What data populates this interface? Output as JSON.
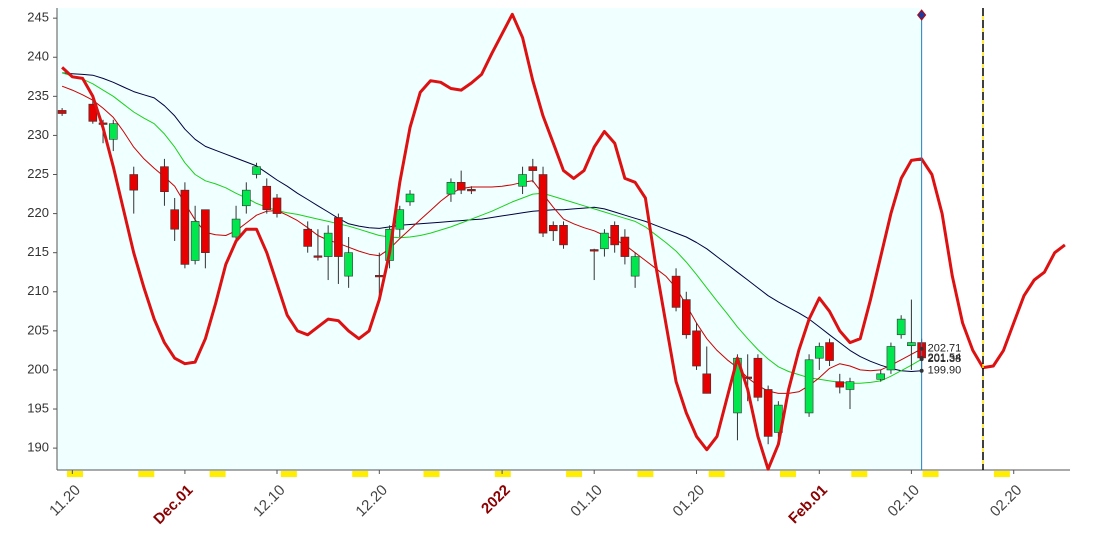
{
  "chart_data": {
    "type": "candlestick",
    "categories": [
      null,
      "11.20",
      null,
      null,
      null,
      null,
      null,
      null,
      null,
      null,
      null,
      null,
      "Dec.01",
      null,
      null,
      null,
      null,
      null,
      null,
      null,
      null,
      "12.10",
      null,
      null,
      null,
      null,
      null,
      null,
      null,
      null,
      null,
      "12.20",
      null,
      null,
      null,
      null,
      null,
      null,
      null,
      null,
      null,
      null,
      null,
      "2022",
      null,
      null,
      null,
      null,
      null,
      null,
      null,
      null,
      "01.10",
      null,
      null,
      null,
      null,
      null,
      null,
      null,
      null,
      null,
      "01.20",
      null,
      null,
      null,
      null,
      null,
      null,
      null,
      null,
      null,
      null,
      null,
      "Feb.01",
      null,
      null,
      null,
      null,
      null,
      null,
      null,
      null,
      "02.10",
      null,
      null,
      null,
      null,
      null,
      null,
      null,
      null,
      null,
      "02.20",
      null,
      null,
      null,
      null,
      null
    ],
    "ohlc": [
      [
        233.2,
        233.5,
        232.5,
        232.8
      ],
      null,
      null,
      [
        234,
        234.5,
        231.5,
        231.8
      ],
      [
        231.6,
        232,
        229,
        231.4
      ],
      [
        229.5,
        232,
        228,
        231.5
      ],
      null,
      [
        225,
        226,
        220,
        223
      ],
      null,
      null,
      [
        226,
        227,
        221,
        222.8
      ],
      [
        220.5,
        222,
        216.5,
        218
      ],
      [
        223,
        224,
        213,
        213.5
      ],
      [
        214,
        221,
        213.5,
        219
      ],
      [
        220.5,
        220.5,
        213,
        215
      ],
      null,
      null,
      [
        217,
        221,
        216.5,
        219.3
      ],
      [
        221,
        224,
        220,
        223
      ],
      [
        225,
        226.5,
        224.5,
        226
      ],
      [
        223.5,
        224.5,
        220,
        220.5
      ],
      [
        222,
        222.5,
        219.5,
        220
      ],
      null,
      null,
      [
        218,
        219,
        215,
        215.8
      ],
      [
        214.6,
        218,
        214,
        214.4
      ],
      [
        214.5,
        218.5,
        211.5,
        217.5
      ],
      [
        219.5,
        220,
        211,
        214.5
      ],
      [
        212,
        217,
        210.5,
        215
      ],
      null,
      null,
      [
        212.1,
        215,
        209,
        211.9
      ],
      [
        214,
        218.5,
        213,
        218
      ],
      [
        218,
        221,
        217,
        220.5
      ],
      [
        221.5,
        223,
        221,
        222.5
      ],
      null,
      null,
      null,
      [
        222.5,
        224.5,
        221.5,
        224
      ],
      [
        224,
        225.5,
        222.5,
        223
      ],
      [
        223.1,
        223.5,
        222.5,
        222.9
      ],
      null,
      null,
      null,
      null,
      [
        223.5,
        226,
        222.5,
        225
      ],
      [
        226,
        227,
        224,
        225.5
      ],
      [
        225,
        226,
        217,
        217.5
      ],
      [
        218.5,
        219,
        216.5,
        217.8
      ],
      [
        218.5,
        219,
        215.5,
        216
      ],
      null,
      null,
      [
        215.4,
        215.5,
        211.5,
        215.2
      ],
      [
        215.5,
        218,
        214.5,
        217.5
      ],
      [
        218.5,
        219,
        215,
        216
      ],
      [
        217,
        218,
        213.5,
        214.5
      ],
      [
        212,
        215,
        210.5,
        214.5
      ],
      null,
      null,
      null,
      [
        212,
        213,
        207.5,
        208
      ],
      [
        209,
        210,
        204,
        204.5
      ],
      [
        205,
        206,
        200,
        200.5
      ],
      [
        199.5,
        203,
        197,
        197
      ],
      null,
      null,
      [
        194.5,
        202,
        191,
        201.5
      ],
      [
        199.1,
        202,
        196,
        198.9
      ],
      [
        201.5,
        202,
        196,
        196.5
      ],
      [
        197.5,
        198,
        190.5,
        191.5
      ],
      [
        192,
        196,
        190.5,
        195.5
      ],
      null,
      null,
      [
        194.5,
        202,
        194,
        201.3
      ],
      [
        201.5,
        203.5,
        200,
        203
      ],
      [
        203.5,
        204,
        200.5,
        201.2
      ],
      [
        198.5,
        199.5,
        197,
        197.8
      ],
      [
        197.5,
        199,
        195,
        198.5
      ],
      null,
      null,
      [
        198.8,
        200,
        198.5,
        199.5
      ],
      [
        200,
        203.5,
        199.5,
        203
      ],
      [
        204.5,
        207,
        204,
        206.5
      ],
      [
        203.1,
        209,
        200,
        203.5
      ],
      [
        203.5,
        204,
        199.9,
        201.54
      ],
      null,
      null,
      null,
      null,
      null,
      null,
      null,
      null,
      null,
      null,
      null,
      null,
      null,
      null
    ],
    "up_color": "#00e64d",
    "down_color": "#e60000",
    "series": [
      {
        "color": "#000040",
        "line_width": 1,
        "values": [
          238,
          237.9,
          237.8,
          237.7,
          237.3,
          236.8,
          236.2,
          235.6,
          235.2,
          234.8,
          233.8,
          232.5,
          230.8,
          229.5,
          228.6,
          228.1,
          227.6,
          227.1,
          226.6,
          226.1,
          225.2,
          224.3,
          223.5,
          222.6,
          221.8,
          221,
          220.2,
          219.4,
          218.7,
          218.4,
          218.2,
          218.1,
          218.3,
          218.5,
          218.6,
          218.7,
          218.8,
          218.9,
          219,
          219.1,
          219.2,
          219.3,
          219.5,
          219.7,
          219.9,
          220.1,
          220.3,
          220.4,
          220.5,
          220.5,
          220.6,
          220.7,
          220.8,
          220.6,
          220.2,
          219.8,
          219.4,
          219,
          218.5,
          218,
          217.5,
          217,
          216.3,
          215.5,
          214.5,
          213.5,
          212.5,
          211.5,
          210.5,
          209.5,
          208.7,
          208,
          207.3,
          206.5,
          205.5,
          204.5,
          203.5,
          202.5,
          201.7,
          201.1,
          200.6,
          200.2,
          199.9,
          199.8,
          199.9,
          null,
          null,
          null,
          null,
          null,
          null,
          null,
          null,
          null,
          null,
          null,
          null,
          null,
          null
        ]
      },
      {
        "color": "#19d219",
        "line_width": 1,
        "values": [
          238,
          237.6,
          237.2,
          236.6,
          235.8,
          235,
          234,
          233,
          232.2,
          231.5,
          230.2,
          228.5,
          226.5,
          225,
          224.2,
          223.8,
          223.3,
          222.6,
          222,
          221.3,
          220.8,
          220.4,
          220.1,
          219.9,
          219.6,
          219.3,
          219,
          218.7,
          218.4,
          218,
          217.6,
          217.2,
          217,
          216.9,
          217,
          217.2,
          217.5,
          217.9,
          218.3,
          218.8,
          219.3,
          219.8,
          220.3,
          220.9,
          221.5,
          222,
          222.5,
          222.6,
          222.2,
          221.8,
          221.4,
          221,
          220.6,
          220.2,
          219.8,
          219.4,
          219,
          218.3,
          217.3,
          216.3,
          215.2,
          213.8,
          212.2,
          210.5,
          208.8,
          207.2,
          205.5,
          204,
          202.6,
          201.4,
          200.4,
          199.8,
          199.4,
          199,
          198.8,
          198.6,
          198.4,
          198.3,
          198.3,
          198.4,
          198.6,
          199.2,
          199.9,
          200.6,
          201.38,
          null,
          null,
          null,
          null,
          null,
          null,
          null,
          null,
          null,
          null,
          null,
          null,
          null,
          null
        ]
      },
      {
        "color": "#cc0000",
        "line_width": 1,
        "values": [
          236.3,
          235.8,
          235.2,
          234.5,
          233.5,
          232.3,
          230.5,
          228.5,
          227,
          225.8,
          224.7,
          223.5,
          221.3,
          219.2,
          217.6,
          217.3,
          217.2,
          217.8,
          218.8,
          219.8,
          220.3,
          220.4,
          219.8,
          219.1,
          218.2,
          217.2,
          216.6,
          216.2,
          215.7,
          215.2,
          214.8,
          214.6,
          215.5,
          216.8,
          218,
          219.2,
          220.4,
          221.6,
          222.6,
          223.2,
          223.4,
          223.4,
          223.4,
          223.5,
          223.7,
          224,
          224.2,
          222.5,
          220.8,
          219.3,
          218.7,
          218.2,
          217.8,
          217.2,
          216.7,
          216,
          215,
          214,
          213,
          212,
          210.5,
          208.3,
          206,
          204,
          202.5,
          201.3,
          200.3,
          199,
          198,
          197.3,
          197,
          197,
          197.2,
          198,
          199,
          200.2,
          200.8,
          200.5,
          200,
          199.9,
          200,
          200.6,
          201.3,
          202,
          202.71,
          null,
          null,
          null,
          null,
          null,
          null,
          null,
          null,
          null,
          null,
          null,
          null,
          null,
          null
        ]
      },
      {
        "color": "#dd1111",
        "line_width": 3,
        "values": [
          238.7,
          237.5,
          237.3,
          235,
          231,
          226,
          220.5,
          215,
          210.5,
          206.5,
          203.5,
          201.5,
          200.8,
          201,
          204,
          208.5,
          213.5,
          216.5,
          218,
          218,
          215,
          211,
          207,
          205,
          204.5,
          205.5,
          206.5,
          206.3,
          205,
          204,
          205,
          209,
          215,
          224,
          231,
          235.5,
          237,
          236.8,
          236,
          235.8,
          236.7,
          237.8,
          240.5,
          243,
          245.5,
          242.5,
          237,
          232.5,
          229,
          225.5,
          224.5,
          225.5,
          228.5,
          230.5,
          229,
          224.5,
          224,
          222,
          213.5,
          206,
          198.5,
          194.5,
          191.5,
          189.8,
          191.5,
          196.5,
          201.5,
          197.5,
          191.5,
          187.3,
          190.5,
          197.5,
          202.5,
          206.5,
          209.2,
          207.5,
          205,
          203.5,
          204,
          209,
          214.5,
          220,
          224.5,
          226.8,
          227,
          225,
          220,
          212,
          206,
          202.5,
          200.3,
          200.5,
          202.5,
          206,
          209.5,
          211.5,
          212.5,
          215,
          216
        ]
      }
    ],
    "last_value_labels": [
      {
        "value": 202.71,
        "label": "202.71"
      },
      {
        "value": 201.54,
        "label": "201.54"
      },
      {
        "value": 201.38,
        "label": "201.38"
      },
      {
        "value": 199.9,
        "label": "199.90"
      }
    ],
    "ylim": [
      187.2,
      246.3
    ],
    "yticks": [
      190,
      195,
      200,
      205,
      210,
      215,
      220,
      225,
      230,
      235,
      240,
      245
    ]
  }
}
